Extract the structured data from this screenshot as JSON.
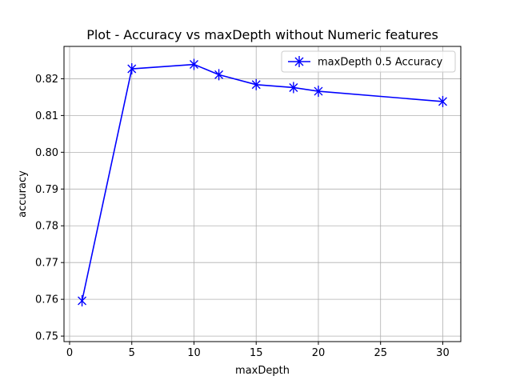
{
  "chart_data": {
    "type": "line",
    "title": "Plot - Accuracy vs maxDepth without Numeric features",
    "xlabel": "maxDepth",
    "ylabel": "accuracy",
    "xlim": [
      -0.45,
      31.45
    ],
    "ylim": [
      0.7485,
      0.8288
    ],
    "xticks": [
      0,
      5,
      10,
      15,
      20,
      25,
      30
    ],
    "xtick_labels": [
      "0",
      "5",
      "10",
      "15",
      "20",
      "25",
      "30"
    ],
    "yticks": [
      0.75,
      0.76,
      0.77,
      0.78,
      0.79,
      0.8,
      0.81,
      0.82
    ],
    "ytick_labels": [
      "0.75",
      "0.76",
      "0.77",
      "0.78",
      "0.79",
      "0.80",
      "0.81",
      "0.82"
    ],
    "grid": true,
    "legend_position": "top-right",
    "series": [
      {
        "name": "maxDepth 0.5 Accuracy",
        "color": "#0000ff",
        "marker": "x-star",
        "x": [
          1,
          5,
          10,
          12,
          15,
          18,
          20,
          30
        ],
        "y": [
          0.7596,
          0.8227,
          0.8239,
          0.8211,
          0.8184,
          0.8176,
          0.8166,
          0.8138
        ]
      }
    ]
  }
}
